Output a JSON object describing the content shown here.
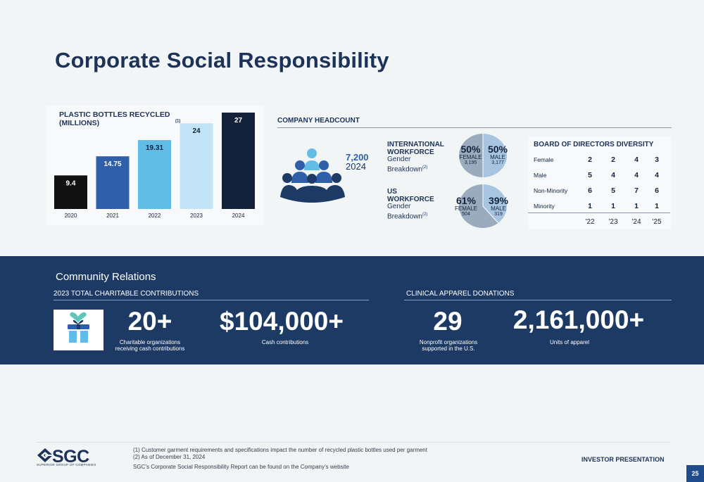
{
  "title": "Corporate Social Responsibility",
  "chart_data": {
    "type": "bar",
    "title": "PLASTIC BOTTLES RECYCLED (MILLIONS)",
    "title_footnote": "(1)",
    "categories": [
      "2020",
      "2021",
      "2022",
      "2023",
      "2024"
    ],
    "values": [
      9.4,
      14.75,
      19.31,
      24,
      27
    ],
    "value_labels": [
      "9.4",
      "14.75",
      "19.31",
      "24",
      "27"
    ],
    "colors": [
      "#111111",
      "#2f5fa8",
      "#62bde6",
      "#c2e4f6",
      "#14213a"
    ],
    "label_colors": [
      "#ffffff",
      "#ffffff",
      "#14213a",
      "#14213a",
      "#ffffff"
    ],
    "ylim": [
      0,
      27
    ]
  },
  "headcount": {
    "label": "COMPANY HEADCOUNT",
    "total": "7,200",
    "year": "2024",
    "icon": "people-group-icon",
    "international": {
      "title_line1": "INTERNATIONAL",
      "title_line2": "WORKFORCE",
      "sub_line1": "Gender",
      "sub_line2": "Breakdown",
      "footnote": "(2)",
      "female_pct": "50%",
      "male_pct": "50%",
      "female_label": "FEMALE",
      "male_label": "MALE",
      "female_count": "3,195",
      "male_count": "3,177",
      "female_share": 0.5
    },
    "us": {
      "title_line1": "US",
      "title_line2": "WORKFORCE",
      "sub_line1": "Gender",
      "sub_line2": "Breakdown",
      "footnote": "(2)",
      "female_pct": "61%",
      "male_pct": "39%",
      "female_label": "FEMALE",
      "male_label": "MALE",
      "female_count": "504",
      "male_count": "319",
      "female_share": 0.61
    },
    "female_color": "#9aabbd",
    "male_color": "#a7c4e0"
  },
  "board": {
    "title": "BOARD OF DIRECTORS DIVERSITY",
    "rows": [
      {
        "label": "Female",
        "values": [
          "2",
          "2",
          "4",
          "3"
        ]
      },
      {
        "label": "Male",
        "values": [
          "5",
          "4",
          "4",
          "4"
        ]
      },
      {
        "label": "Non-Minority",
        "values": [
          "6",
          "5",
          "7",
          "6"
        ]
      },
      {
        "label": "Minority",
        "values": [
          "1",
          "1",
          "1",
          "1"
        ]
      }
    ],
    "years": [
      "'22",
      "'23",
      "'24",
      "'25"
    ]
  },
  "community": {
    "title": "Community Relations",
    "contrib_label": "2023 TOTAL CHARITABLE CONTRIBUTIONS",
    "apparel_label": "CLINICAL APPAREL DONATIONS",
    "gift_icon": "gift-icon",
    "stats": [
      {
        "value": "20+",
        "desc_line1": "Charitable organizations",
        "desc_line2": "receiving cash contributions"
      },
      {
        "value": "$104,000+",
        "desc_line1": "Cash contributions",
        "desc_line2": ""
      },
      {
        "value": "29",
        "desc_line1": "Nonprofit organizations",
        "desc_line2": "supported in the U.S."
      },
      {
        "value": "2,161,000+",
        "desc_line1": "Units of apparel",
        "desc_line2": ""
      }
    ]
  },
  "footer": {
    "note1": "(1) Customer garment requirements and specifications impact the number of recycled plastic bottles used per garment",
    "note2": "(2) As of December 31, 2024",
    "note3": "SGC’s Corporate Social Responsibility Report can be found on the Company’s website",
    "logo_text": "SGC",
    "logo_tagline": "SUPERIOR GROUP OF COMPANIES",
    "presentation_label": "INVESTOR PRESENTATION",
    "page_number": "25"
  }
}
